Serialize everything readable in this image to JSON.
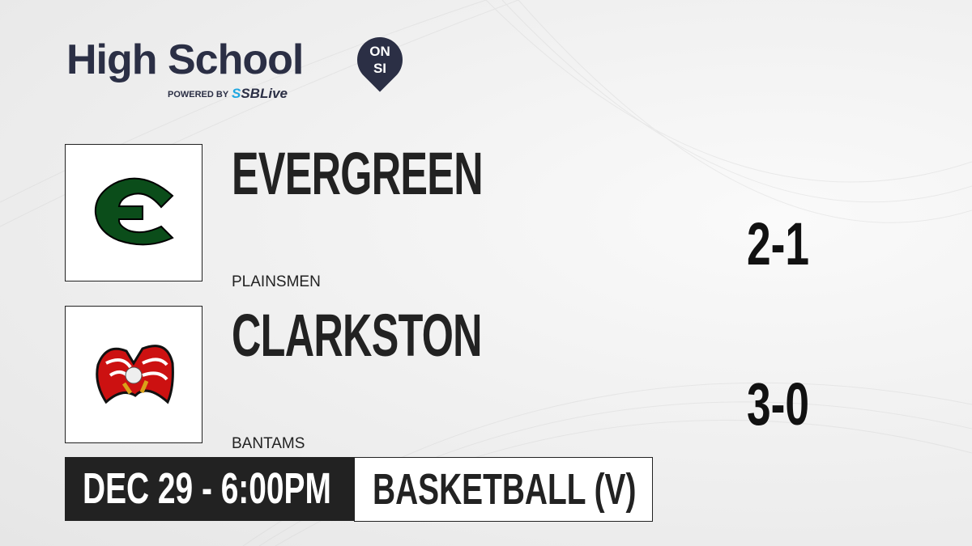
{
  "brand": {
    "title": "High School",
    "badge_top": "ON",
    "badge_bottom": "SI",
    "powered_by": "POWERED BY",
    "partner_prefix": "S",
    "partner": "SBLive"
  },
  "teams": [
    {
      "name": "EVERGREEN",
      "mascot": "PLAINSMEN",
      "record": "2-1",
      "logo": "green-E-logo",
      "color": "#0b4d1a"
    },
    {
      "name": "CLARKSTON",
      "mascot": "BANTAMS",
      "record": "3-0",
      "logo": "eagle-logo",
      "color": "#cc1111"
    }
  ],
  "game": {
    "datetime": "DEC 29 - 6:00PM",
    "sport": "BASKETBALL (V)"
  }
}
